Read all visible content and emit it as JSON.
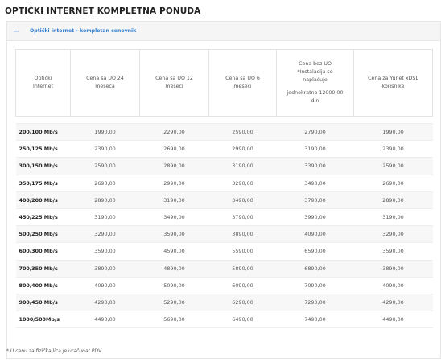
{
  "page_title": "OPTIČKI INTERNET KOMPLETNA PONUDA",
  "accordion": {
    "toggle_symbol": "−",
    "title": "Optički internet - kompletan cenovnik"
  },
  "table": {
    "headers": [
      {
        "lines": [
          "Optički",
          "Internet"
        ]
      },
      {
        "lines": [
          "Cena sa UO 24",
          "meseca"
        ]
      },
      {
        "lines": [
          "Cena sa UO 12",
          "meseci"
        ]
      },
      {
        "lines": [
          "Cena sa UO 6",
          "meseci"
        ]
      },
      {
        "lines": [
          "Cena bez UO",
          "*Instalacija se",
          "naplaćuje"
        ],
        "note": [
          "jednokratno 12000,00",
          "din"
        ]
      },
      {
        "lines": [
          "Cena za Yunet xDSL",
          "korisnike"
        ]
      }
    ],
    "rows": [
      {
        "speed": "200/100 Mb/s",
        "prices": [
          "1990,00",
          "2290,00",
          "2590,00",
          "2790,00",
          "1990,00"
        ]
      },
      {
        "speed": "250/125 Mb/s",
        "prices": [
          "2390,00",
          "2690,00",
          "2990,00",
          "3190,00",
          "2390,00"
        ]
      },
      {
        "speed": "300/150 Mb/s",
        "prices": [
          "2590,00",
          "2890,00",
          "3190,00",
          "3390,00",
          "2590,00"
        ]
      },
      {
        "speed": "350/175 Mb/s",
        "prices": [
          "2690,00",
          "2990,00",
          "3290,00",
          "3490,00",
          "2690,00"
        ]
      },
      {
        "speed": "400/200 Mb/s",
        "prices": [
          "2890,00",
          "3190,00",
          "3490,00",
          "3790,00",
          "2890,00"
        ]
      },
      {
        "speed": "450/225 Mb/s",
        "prices": [
          "3190,00",
          "3490,00",
          "3790,00",
          "3990,00",
          "3190,00"
        ]
      },
      {
        "speed": "500/250 Mb/s",
        "prices": [
          "3290,00",
          "3590,00",
          "3890,00",
          "4090,00",
          "3290,00"
        ]
      },
      {
        "speed": "600/300 Mb/s",
        "prices": [
          "3590,00",
          "4590,00",
          "5590,00",
          "6590,00",
          "3590,00"
        ]
      },
      {
        "speed": "700/350 Mb/s",
        "prices": [
          "3890,00",
          "4890,00",
          "5890,00",
          "6890,00",
          "3890,00"
        ]
      },
      {
        "speed": "800/400 Mb/s",
        "prices": [
          "4090,00",
          "5090,00",
          "6090,00",
          "7090,00",
          "4090,00"
        ]
      },
      {
        "speed": "900/450 Mb/s",
        "prices": [
          "4290,00",
          "5290,00",
          "6290,00",
          "7290,00",
          "4290,00"
        ]
      },
      {
        "speed": "1000/500Mb/s",
        "prices": [
          "4490,00",
          "5690,00",
          "6490,00",
          "7490,00",
          "4490,00"
        ]
      }
    ]
  },
  "footnote": "* U cenu za fizička lica je uračunat PDV",
  "colors": {
    "accent": "#2f7fd0",
    "row_alt": "#f7f7f7",
    "border": "#e3e3e3"
  }
}
